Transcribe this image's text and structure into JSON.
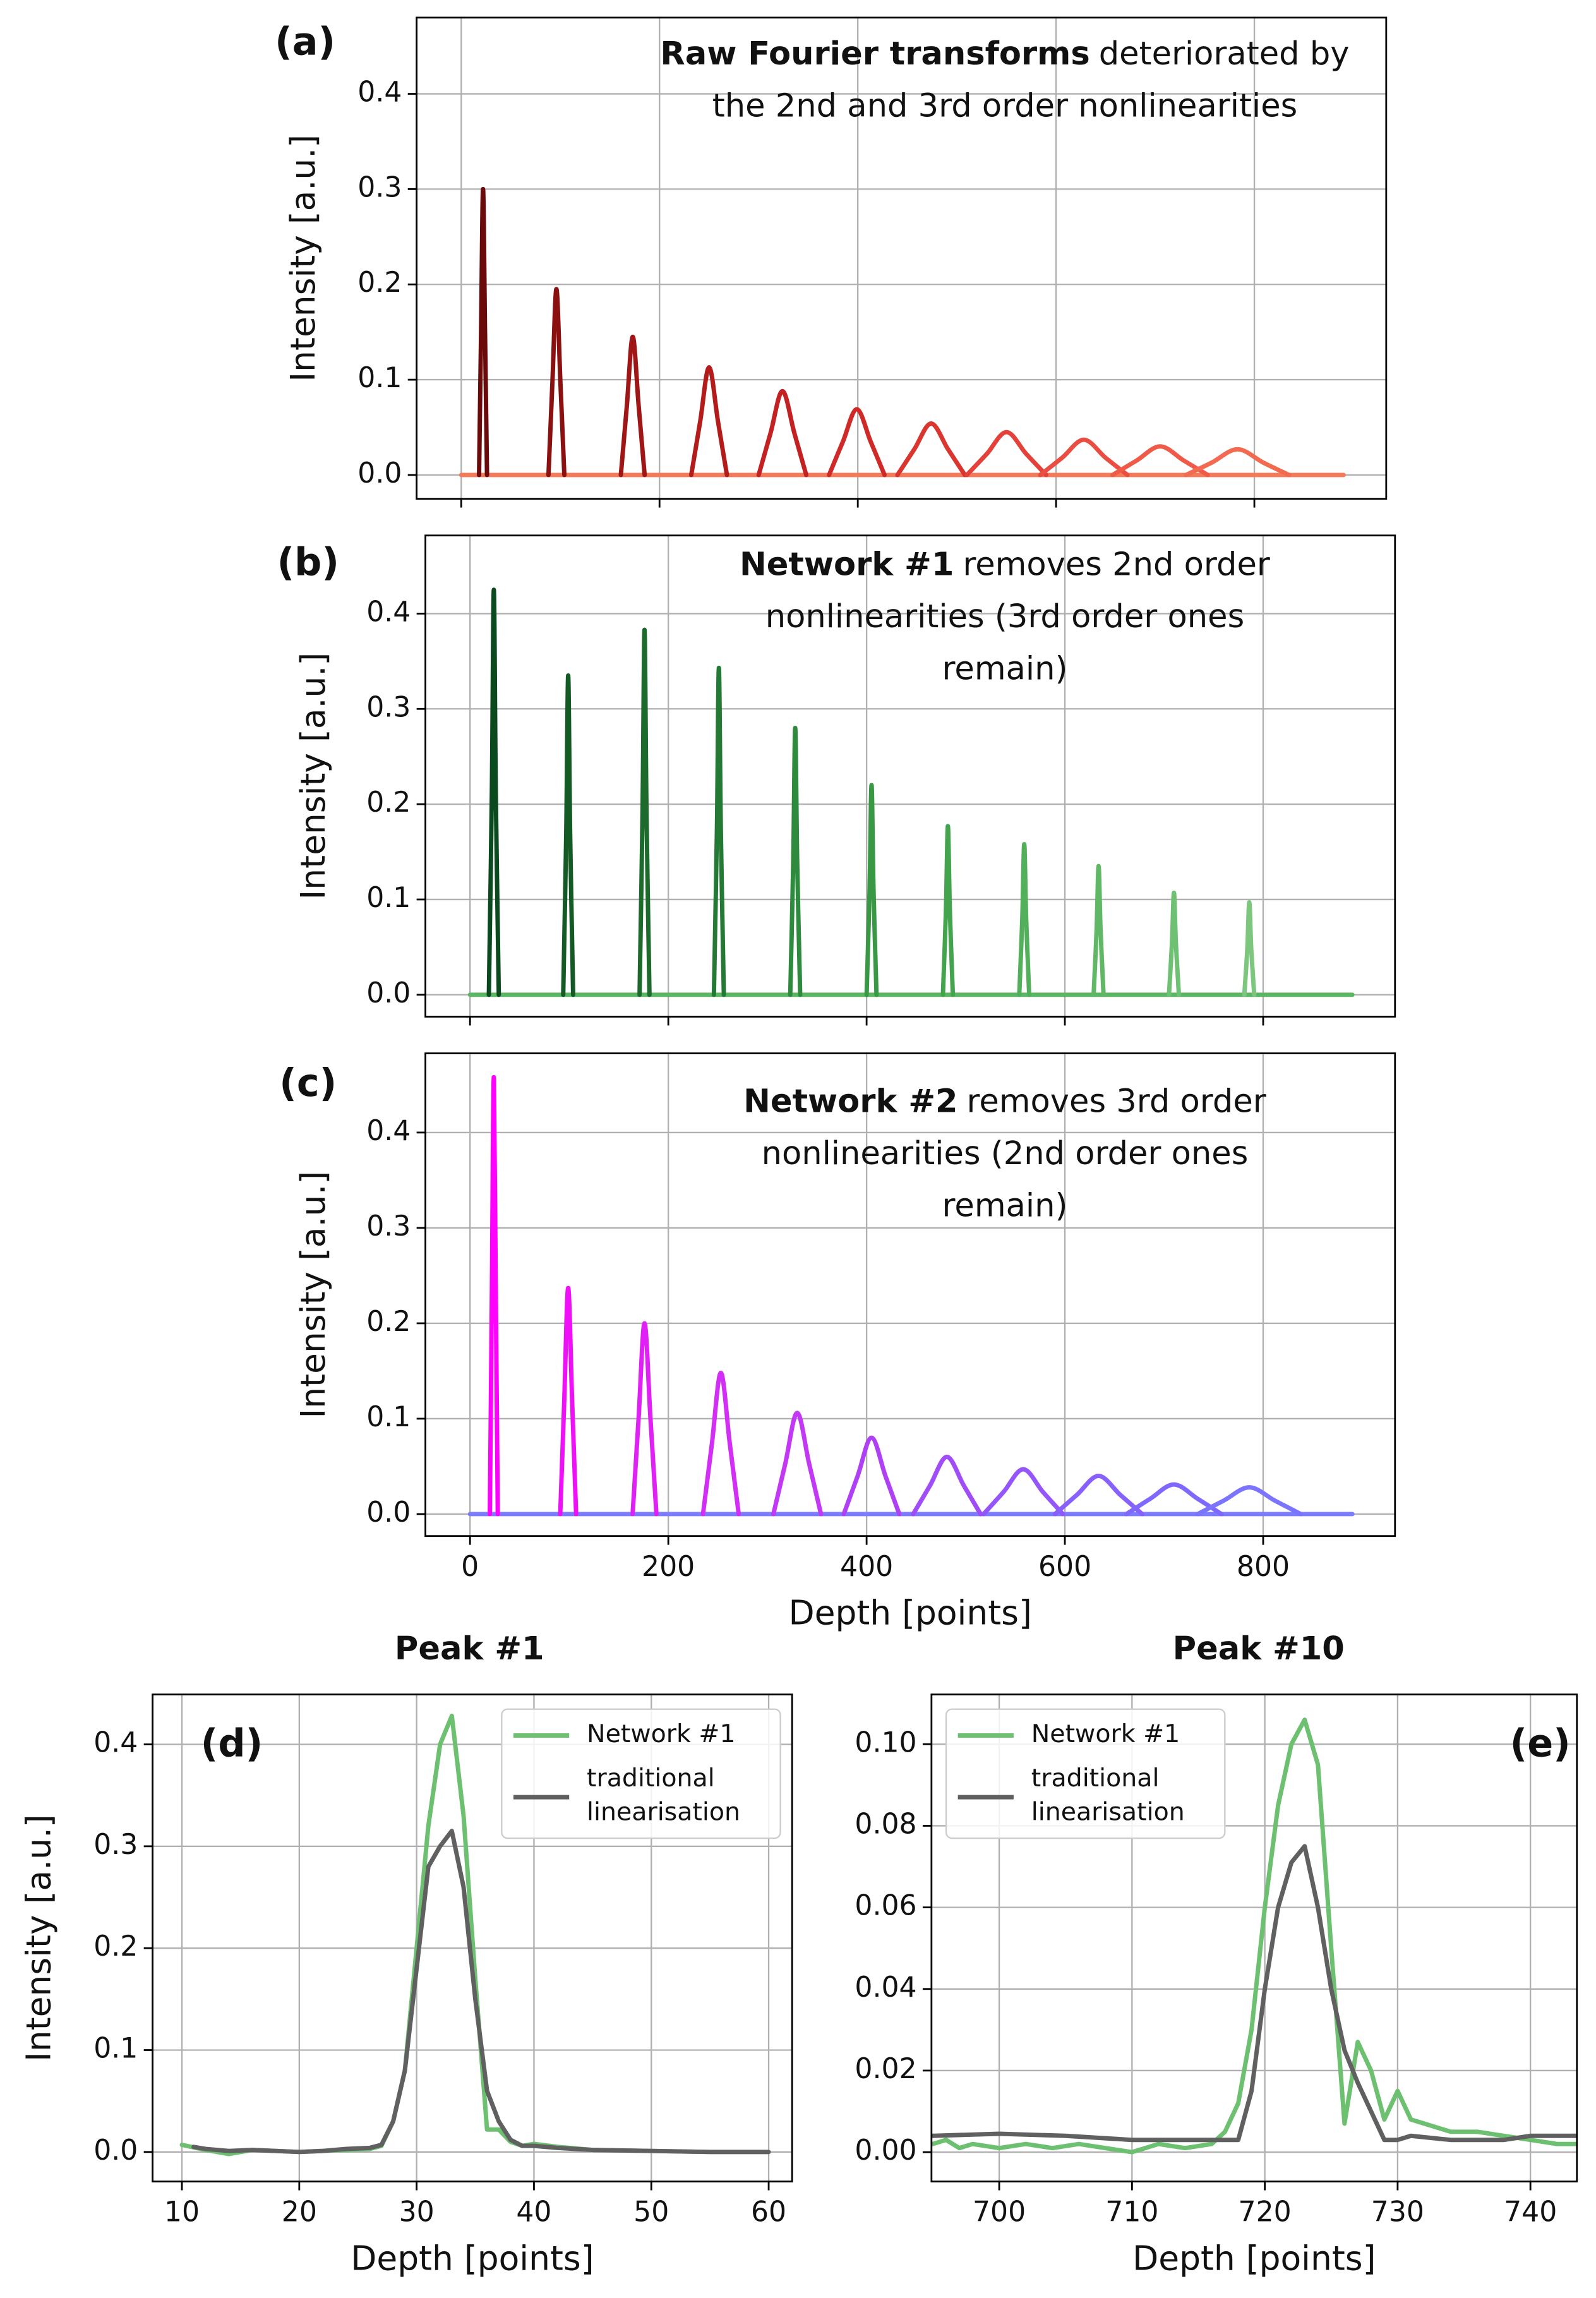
{
  "chart_data": [
    {
      "type": "line",
      "label": "(a)",
      "ylabel": "Intensity [a.u.]",
      "annotation": {
        "bold": "Raw Fourier transforms",
        "lines": [
          "deteriorated by",
          "the 2nd and 3rd order nonlinearities"
        ]
      },
      "xlim": [
        -45,
        933
      ],
      "xticks": [
        0,
        200,
        400,
        600,
        800
      ],
      "xtick_labels": false,
      "ylim": [
        -0.025,
        0.48
      ],
      "yticks": [
        {
          "value": 0,
          "label": "0.0"
        },
        0.1,
        0.2,
        0.3,
        0.4
      ],
      "grid": true,
      "smooth": true,
      "series": [
        {
          "color": "#f47a5a",
          "x": [
            0,
            890
          ],
          "values": [
            0,
            0
          ]
        },
        {
          "color": "#6b0a0a",
          "x": [
            18,
            20,
            22,
            24,
            26
          ],
          "values": [
            0,
            0.15,
            0.3,
            0.15,
            0
          ]
        },
        {
          "color": "#8b1010",
          "x": [
            88,
            92,
            96,
            100,
            104
          ],
          "values": [
            0,
            0.098,
            0.195,
            0.098,
            0
          ]
        },
        {
          "color": "#a01515",
          "x": [
            161,
            167,
            173,
            179,
            185
          ],
          "values": [
            0,
            0.072,
            0.145,
            0.072,
            0
          ]
        },
        {
          "color": "#b41c1c",
          "x": [
            232,
            241,
            250,
            259,
            268
          ],
          "values": [
            0,
            0.056,
            0.113,
            0.056,
            0
          ]
        },
        {
          "color": "#c42222",
          "x": [
            300,
            312,
            324,
            336,
            348
          ],
          "values": [
            0,
            0.044,
            0.088,
            0.044,
            0
          ]
        },
        {
          "color": "#d02a28",
          "x": [
            371,
            385,
            399,
            413,
            427
          ],
          "values": [
            0,
            0.035,
            0.069,
            0.035,
            0
          ]
        },
        {
          "color": "#db3530",
          "x": [
            440,
            457,
            474,
            491,
            508
          ],
          "values": [
            0,
            0.027,
            0.054,
            0.027,
            0
          ]
        },
        {
          "color": "#e3413a",
          "x": [
            510,
            530,
            550,
            570,
            590
          ],
          "values": [
            0,
            0.022,
            0.045,
            0.022,
            0
          ]
        },
        {
          "color": "#ea4e42",
          "x": [
            584,
            606,
            628,
            650,
            672
          ],
          "values": [
            0,
            0.018,
            0.037,
            0.018,
            0
          ]
        },
        {
          "color": "#ef5b48",
          "x": [
            657,
            681,
            705,
            729,
            753
          ],
          "values": [
            0,
            0.015,
            0.03,
            0.015,
            0
          ]
        },
        {
          "color": "#f26a50",
          "x": [
            731,
            757,
            783,
            809,
            835
          ],
          "values": [
            0,
            0.013,
            0.027,
            0.013,
            0
          ]
        }
      ]
    },
    {
      "type": "line",
      "label": "(b)",
      "ylabel": "Intensity [a.u.]",
      "annotation": {
        "bold": "Network #1",
        "lines": [
          "removes 2nd order",
          "nonlinearities (3rd order ones",
          "remain)"
        ]
      },
      "xlim": [
        -45,
        933
      ],
      "xticks": [
        0,
        200,
        400,
        600,
        800
      ],
      "xtick_labels": false,
      "ylim": [
        -0.023,
        0.482
      ],
      "yticks": [
        {
          "value": 0,
          "label": "0.0"
        },
        0.1,
        0.2,
        0.3,
        0.4
      ],
      "grid": true,
      "smooth": true,
      "series": [
        {
          "color": "#5cb764",
          "x": [
            0,
            890
          ],
          "values": [
            0,
            0
          ]
        },
        {
          "color": "#0a4a1e",
          "x": [
            19,
            22,
            24,
            26,
            29
          ],
          "values": [
            0,
            0.212,
            0.425,
            0.212,
            0
          ]
        },
        {
          "color": "#145a25",
          "x": [
            94,
            97,
            99,
            101,
            104
          ],
          "values": [
            0,
            0.168,
            0.335,
            0.168,
            0
          ]
        },
        {
          "color": "#1c6a2c",
          "x": [
            171,
            174,
            176,
            178,
            181
          ],
          "values": [
            0,
            0.192,
            0.383,
            0.192,
            0
          ]
        },
        {
          "color": "#247a34",
          "x": [
            246,
            249,
            251,
            253,
            256
          ],
          "values": [
            0,
            0.172,
            0.343,
            0.172,
            0
          ]
        },
        {
          "color": "#2e8a3c",
          "x": [
            323,
            326,
            328,
            330,
            333
          ],
          "values": [
            0,
            0.14,
            0.28,
            0.14,
            0
          ]
        },
        {
          "color": "#389844",
          "x": [
            400,
            403,
            405,
            407,
            410
          ],
          "values": [
            0,
            0.11,
            0.22,
            0.11,
            0
          ]
        },
        {
          "color": "#44a44e",
          "x": [
            477,
            480,
            482,
            484,
            487
          ],
          "values": [
            0,
            0.088,
            0.177,
            0.088,
            0
          ]
        },
        {
          "color": "#52b05a",
          "x": [
            554,
            557,
            559,
            561,
            564
          ],
          "values": [
            0,
            0.079,
            0.158,
            0.079,
            0
          ]
        },
        {
          "color": "#60b866",
          "x": [
            629,
            632,
            634,
            636,
            639
          ],
          "values": [
            0,
            0.068,
            0.135,
            0.068,
            0
          ]
        },
        {
          "color": "#6ec072",
          "x": [
            705,
            708,
            710,
            712,
            715
          ],
          "values": [
            0,
            0.054,
            0.107,
            0.054,
            0
          ]
        },
        {
          "color": "#7cc67e",
          "x": [
            781,
            784,
            786,
            788,
            791
          ],
          "values": [
            0,
            0.048,
            0.097,
            0.048,
            0
          ]
        }
      ]
    },
    {
      "type": "line",
      "label": "(c)",
      "ylabel": "Intensity [a.u.]",
      "xlabel": "Depth [points]",
      "annotation": {
        "bold": "Network #2",
        "lines": [
          "removes 3rd order",
          "nonlinearities (2nd order ones",
          "remain)"
        ]
      },
      "xlim": [
        -45,
        933
      ],
      "xticks": [
        0,
        200,
        400,
        600,
        800
      ],
      "xtick_labels": true,
      "ylim": [
        -0.023,
        0.483
      ],
      "yticks": [
        {
          "value": 0,
          "label": "0.0"
        },
        0.1,
        0.2,
        0.3,
        0.4
      ],
      "grid": true,
      "smooth": true,
      "series": [
        {
          "color": "#7c7cff",
          "x": [
            0,
            890
          ],
          "values": [
            0,
            0
          ]
        },
        {
          "color": "#ff00ff",
          "x": [
            20,
            22,
            24,
            26,
            28
          ],
          "values": [
            0,
            0.229,
            0.458,
            0.229,
            0
          ]
        },
        {
          "color": "#f010f8",
          "x": [
            91,
            95,
            99,
            103,
            107
          ],
          "values": [
            0,
            0.118,
            0.237,
            0.118,
            0
          ]
        },
        {
          "color": "#e020f5",
          "x": [
            164,
            170,
            176,
            182,
            188
          ],
          "values": [
            0,
            0.1,
            0.2,
            0.1,
            0
          ]
        },
        {
          "color": "#d22ef5",
          "x": [
            235,
            244,
            253,
            262,
            271
          ],
          "values": [
            0,
            0.074,
            0.148,
            0.074,
            0
          ]
        },
        {
          "color": "#c238f5",
          "x": [
            306,
            318,
            330,
            342,
            354
          ],
          "values": [
            0,
            0.053,
            0.106,
            0.053,
            0
          ]
        },
        {
          "color": "#b040f5",
          "x": [
            377,
            391,
            405,
            419,
            433
          ],
          "values": [
            0,
            0.04,
            0.08,
            0.04,
            0
          ]
        },
        {
          "color": "#a04cf8",
          "x": [
            447,
            464,
            481,
            498,
            515
          ],
          "values": [
            0,
            0.03,
            0.06,
            0.03,
            0
          ]
        },
        {
          "color": "#9456fa",
          "x": [
            518,
            538,
            558,
            578,
            598
          ],
          "values": [
            0,
            0.023,
            0.047,
            0.023,
            0
          ]
        },
        {
          "color": "#8860fc",
          "x": [
            590,
            612,
            634,
            656,
            678
          ],
          "values": [
            0,
            0.02,
            0.04,
            0.02,
            0
          ]
        },
        {
          "color": "#7e68fe",
          "x": [
            662,
            686,
            710,
            734,
            758
          ],
          "values": [
            0,
            0.016,
            0.031,
            0.016,
            0
          ]
        },
        {
          "color": "#7a74ff",
          "x": [
            734,
            760,
            786,
            812,
            838
          ],
          "values": [
            0,
            0.014,
            0.028,
            0.014,
            0
          ]
        }
      ]
    },
    {
      "type": "line",
      "label": "(d)",
      "title": "Peak #1",
      "ylabel": "Intensity [a.u.]",
      "xlabel": "Depth [points]",
      "xlim": [
        7.5,
        62
      ],
      "xticks": [
        10,
        20,
        30,
        40,
        50,
        60
      ],
      "xtick_labels": true,
      "ylim": [
        -0.029,
        0.449
      ],
      "yticks": [
        {
          "value": 0,
          "label": "0.0"
        },
        0.1,
        0.2,
        0.3,
        0.4
      ],
      "grid": true,
      "smooth": false,
      "legend": "upper right",
      "series": [
        {
          "name": "Network #1",
          "color": "#6cc070",
          "x": [
            10,
            12,
            14,
            16,
            18,
            20,
            22,
            24,
            26,
            27,
            28,
            29,
            30,
            31,
            32,
            33,
            34,
            35,
            36,
            37,
            38,
            39,
            40,
            42,
            45,
            50,
            55,
            60
          ],
          "values": [
            0.007,
            0.002,
            -0.002,
            0.002,
            0.001,
            0,
            0.001,
            0.002,
            0.003,
            0.006,
            0.03,
            0.08,
            0.2,
            0.32,
            0.4,
            0.428,
            0.33,
            0.17,
            0.022,
            0.022,
            0.01,
            0.006,
            0.008,
            0.005,
            0.002,
            0.001,
            0,
            0
          ]
        },
        {
          "name": "traditional linearisation",
          "color": "#606060",
          "x": [
            11,
            12,
            14,
            16,
            18,
            20,
            22,
            24,
            26,
            27,
            28,
            29,
            30,
            31,
            32,
            33,
            34,
            35,
            36,
            37,
            38,
            39,
            40,
            42,
            45,
            50,
            55,
            60
          ],
          "values": [
            0.005,
            0.003,
            0.001,
            0.002,
            0.001,
            0,
            0.001,
            0.003,
            0.004,
            0.007,
            0.03,
            0.08,
            0.18,
            0.28,
            0.3,
            0.315,
            0.26,
            0.15,
            0.06,
            0.03,
            0.012,
            0.006,
            0.006,
            0.004,
            0.002,
            0.001,
            0,
            0
          ]
        }
      ]
    },
    {
      "type": "line",
      "label": "(e)",
      "title": "Peak #10",
      "xlabel": "Depth [points]",
      "xlim": [
        694.9,
        743.5
      ],
      "xticks": [
        700,
        710,
        720,
        730,
        740
      ],
      "xtick_labels": true,
      "ylim": [
        -0.0072,
        0.1122
      ],
      "yticks": [
        {
          "value": 0,
          "label": "0.00"
        },
        0.02,
        0.04,
        0.06,
        0.08,
        {
          "value": 0.1,
          "label": "0.10"
        }
      ],
      "grid": true,
      "smooth": false,
      "legend": "upper left",
      "series": [
        {
          "name": "Network #1",
          "color": "#6cc070",
          "x": [
            695,
            696,
            697,
            698,
            700,
            702,
            704,
            706,
            708,
            710,
            712,
            714,
            716,
            717,
            718,
            719,
            720,
            721,
            722,
            723,
            724,
            725,
            726,
            727,
            728,
            729,
            730,
            731,
            732,
            734,
            736,
            738,
            740,
            742,
            744,
            745
          ],
          "values": [
            0.002,
            0.003,
            0.001,
            0.002,
            0.001,
            0.002,
            0.001,
            0.002,
            0.001,
            0,
            0.002,
            0.001,
            0.002,
            0.005,
            0.012,
            0.03,
            0.06,
            0.085,
            0.1,
            0.106,
            0.095,
            0.05,
            0.007,
            0.027,
            0.02,
            0.008,
            0.015,
            0.008,
            0.007,
            0.005,
            0.005,
            0.004,
            0.003,
            0.002,
            0.002,
            0.002
          ]
        },
        {
          "name": "traditional linearisation",
          "color": "#606060",
          "x": [
            695,
            700,
            705,
            710,
            715,
            716,
            717,
            718,
            719,
            720,
            721,
            722,
            723,
            724,
            725,
            726,
            727,
            728,
            729,
            730,
            731,
            734,
            736,
            738,
            740,
            742,
            745
          ],
          "values": [
            0.004,
            0.0045,
            0.004,
            0.003,
            0.003,
            0.003,
            0.003,
            0.003,
            0.015,
            0.04,
            0.06,
            0.071,
            0.075,
            0.06,
            0.04,
            0.025,
            0.017,
            0.01,
            0.003,
            0.003,
            0.004,
            0.003,
            0.003,
            0.003,
            0.004,
            0.004,
            0.004
          ]
        }
      ]
    }
  ]
}
